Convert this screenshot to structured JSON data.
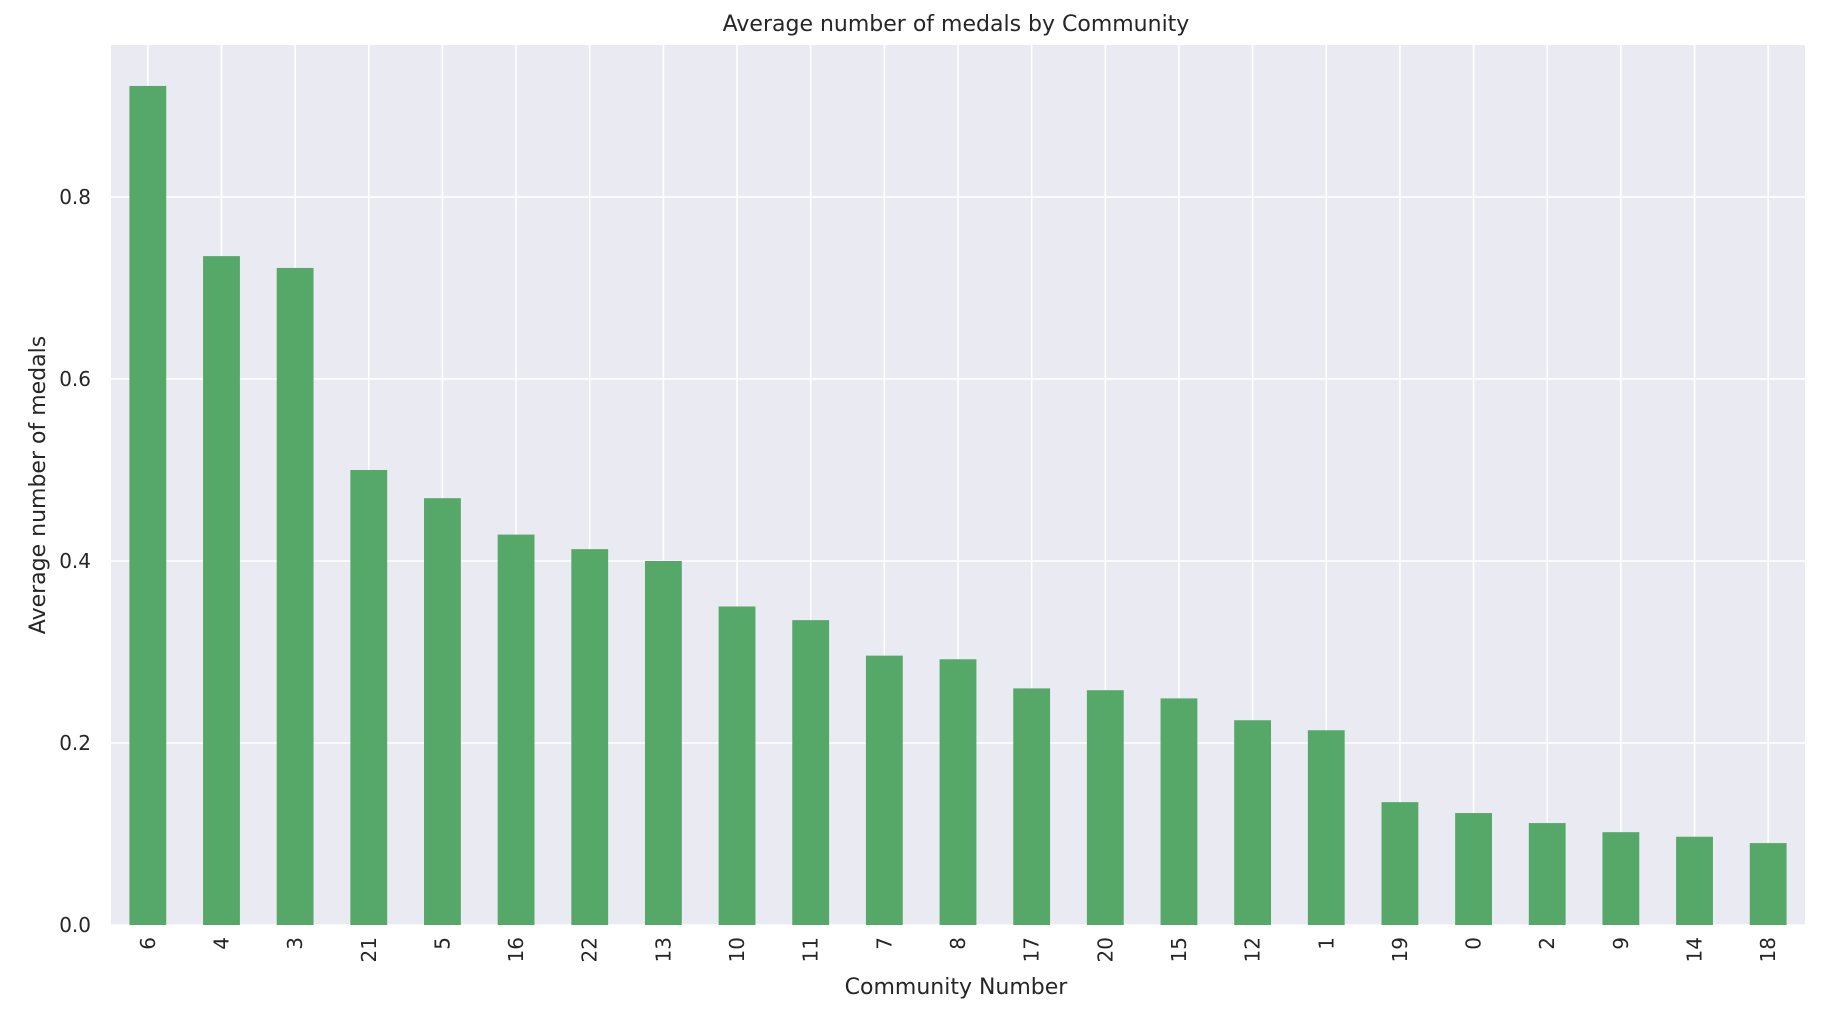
{
  "chart_data": {
    "type": "bar",
    "title": "Average number of medals by Community",
    "xlabel": "Community Number",
    "ylabel": "Average number of medals",
    "categories": [
      "6",
      "4",
      "3",
      "21",
      "5",
      "16",
      "22",
      "13",
      "10",
      "11",
      "7",
      "8",
      "17",
      "20",
      "15",
      "12",
      "1",
      "19",
      "0",
      "2",
      "9",
      "14",
      "18"
    ],
    "values": [
      0.922,
      0.735,
      0.722,
      0.5,
      0.469,
      0.429,
      0.413,
      0.4,
      0.35,
      0.335,
      0.296,
      0.292,
      0.26,
      0.258,
      0.249,
      0.225,
      0.214,
      0.135,
      0.123,
      0.112,
      0.102,
      0.097,
      0.09
    ],
    "ylim": [
      0,
      0.967
    ],
    "yticks": [
      "0.0",
      "0.2",
      "0.4",
      "0.6",
      "0.8"
    ],
    "grid": true,
    "bar_color": "#55a868",
    "background_color": "#eaeaf2",
    "grid_color": "#ffffff"
  }
}
